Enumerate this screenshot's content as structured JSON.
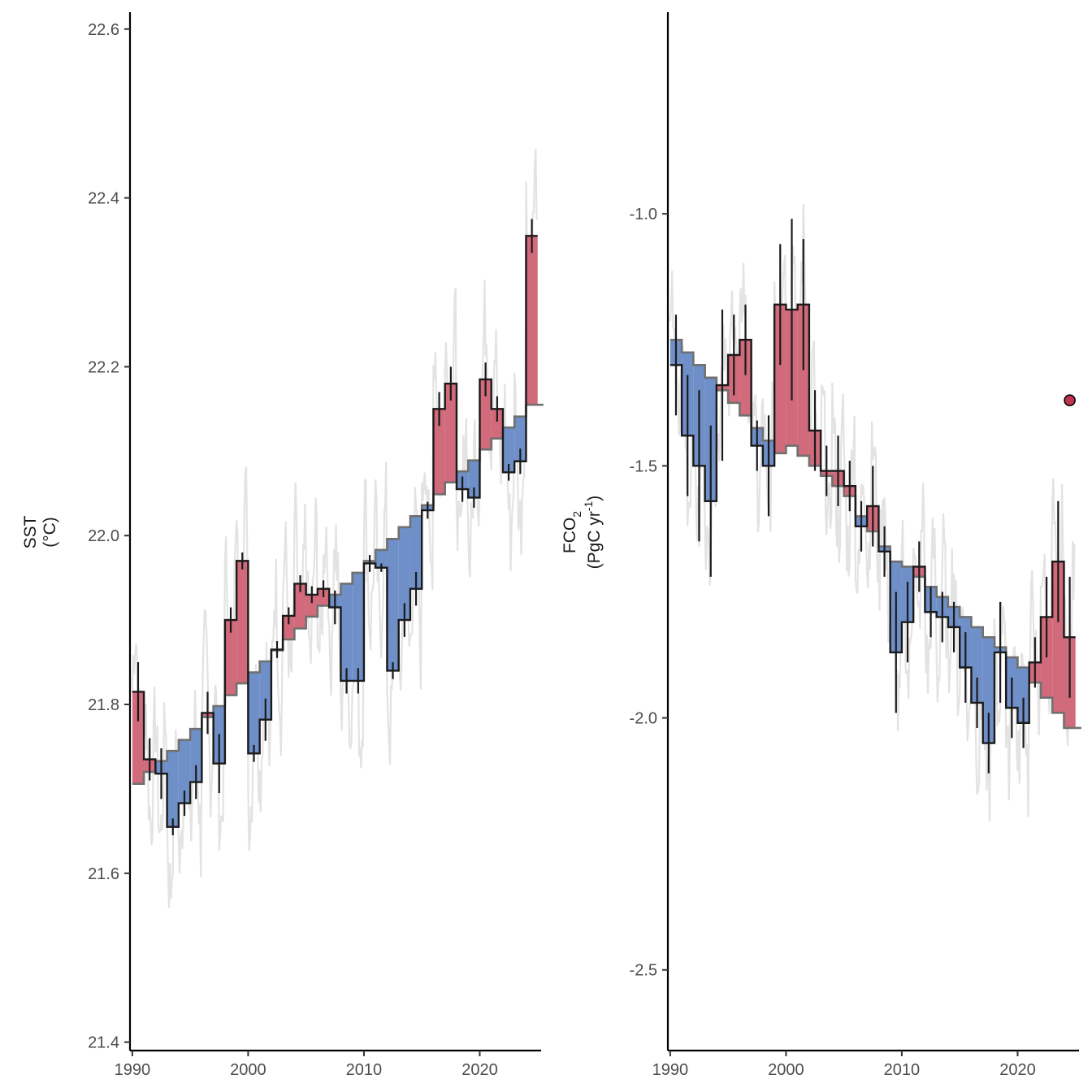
{
  "chart_data": [
    {
      "type": "line",
      "panel": "left",
      "ylabel_lines": [
        "SST",
        "(°C)"
      ],
      "xlabel": "",
      "xlim": [
        1989.8,
        2025.3
      ],
      "ylim": [
        21.39,
        22.62
      ],
      "xticks": [
        1990,
        2000,
        2010,
        2020
      ],
      "yticks": [
        21.4,
        21.6,
        21.8,
        22.0,
        22.2,
        22.4,
        22.6
      ],
      "ytick_labels": [
        "21.4",
        "21.6",
        "21.8",
        "22.0",
        "22.2",
        "22.4",
        "22.6"
      ],
      "xtick_labels": [
        "1990",
        "2000",
        "2010",
        "2020"
      ],
      "grid": false,
      "colors": {
        "above": "#d16a7a",
        "below": "#6f8fc8",
        "monthly": "#e3e3e3",
        "trend": "#707070",
        "annual": "#1a1a1a"
      },
      "series": [
        {
          "years": [
            1990,
            1991,
            1992,
            1993,
            1994,
            1995,
            1996,
            1997,
            1998,
            1999,
            2000,
            2001,
            2002,
            2003,
            2004,
            2005,
            2006,
            2007,
            2008,
            2009,
            2010,
            2011,
            2012,
            2013,
            2014,
            2015,
            2016,
            2017,
            2018,
            2019,
            2020,
            2021,
            2022,
            2023,
            2024
          ],
          "annual": [
            21.815,
            21.735,
            21.718,
            21.655,
            21.683,
            21.708,
            21.79,
            21.73,
            21.9,
            21.97,
            21.742,
            21.782,
            21.865,
            21.905,
            21.943,
            21.93,
            21.937,
            21.915,
            21.828,
            21.828,
            21.967,
            21.962,
            21.84,
            21.9,
            21.937,
            22.03,
            22.15,
            22.18,
            22.055,
            22.045,
            22.185,
            22.15,
            22.075,
            22.088,
            22.355
          ],
          "error": [
            0.035,
            0.025,
            0.03,
            0.01,
            0.015,
            0.02,
            0.025,
            0.035,
            0.015,
            0.01,
            0.01,
            0.025,
            0.01,
            0.01,
            0.01,
            0.01,
            0.01,
            0.02,
            0.015,
            0.015,
            0.01,
            0.005,
            0.01,
            0.02,
            0.02,
            0.01,
            0.02,
            0.02,
            0.015,
            0.012,
            0.02,
            0.015,
            0.01,
            0.015,
            0.02
          ],
          "baseline": [
            21.706,
            21.72,
            21.733,
            21.745,
            21.758,
            21.771,
            21.785,
            21.798,
            21.811,
            21.825,
            21.838,
            21.851,
            21.864,
            21.877,
            21.89,
            21.904,
            21.917,
            21.93,
            21.943,
            21.956,
            21.97,
            21.983,
            21.996,
            22.01,
            22.023,
            22.036,
            22.049,
            22.063,
            22.076,
            22.089,
            22.102,
            22.115,
            22.128,
            22.141,
            22.155
          ]
        }
      ]
    },
    {
      "type": "line",
      "panel": "right",
      "ylabel_lines": [
        "FCO2",
        "(PgC yr-1)"
      ],
      "xlabel": "",
      "xlim": [
        1989.8,
        2025.3
      ],
      "ylim": [
        -2.66,
        -0.6
      ],
      "xticks": [
        1990,
        2000,
        2010,
        2020
      ],
      "yticks": [
        -2.5,
        -2.0,
        -1.5,
        -1.0
      ],
      "ytick_labels": [
        "-2.5",
        "-2.0",
        "-1.5",
        "-1.0"
      ],
      "xtick_labels": [
        "1990",
        "2000",
        "2010",
        "2020"
      ],
      "grid": false,
      "colors": {
        "above": "#d16a7a",
        "below": "#6f8fc8",
        "monthly": "#e3e3e3",
        "trend": "#707070",
        "annual": "#1a1a1a",
        "point": "#c0344f"
      },
      "series": [
        {
          "years": [
            1990,
            1991,
            1992,
            1993,
            1994,
            1995,
            1996,
            1997,
            1998,
            1999,
            2000,
            2001,
            2002,
            2003,
            2004,
            2005,
            2006,
            2007,
            2008,
            2009,
            2010,
            2011,
            2012,
            2013,
            2014,
            2015,
            2016,
            2017,
            2018,
            2019,
            2020,
            2021,
            2022,
            2023,
            2024
          ],
          "annual": [
            -1.3,
            -1.44,
            -1.5,
            -1.57,
            -1.34,
            -1.28,
            -1.25,
            -1.46,
            -1.5,
            -1.18,
            -1.19,
            -1.18,
            -1.43,
            -1.51,
            -1.51,
            -1.54,
            -1.62,
            -1.58,
            -1.67,
            -1.87,
            -1.81,
            -1.7,
            -1.79,
            -1.8,
            -1.82,
            -1.9,
            -1.97,
            -2.05,
            -1.87,
            -1.98,
            -2.01,
            -1.89,
            -1.8,
            -1.69,
            -1.84
          ],
          "error": [
            0.1,
            0.12,
            0.15,
            0.15,
            0.15,
            0.08,
            0.07,
            0.05,
            0.1,
            0.12,
            0.18,
            0.13,
            0.08,
            0.05,
            0.07,
            0.05,
            0.05,
            0.08,
            0.05,
            0.12,
            0.08,
            0.05,
            0.05,
            0.05,
            0.05,
            0.07,
            0.05,
            0.06,
            0.1,
            0.06,
            0.05,
            0.05,
            0.08,
            0.12,
            0.12
          ],
          "baseline": [
            -1.25,
            -1.275,
            -1.3,
            -1.325,
            -1.35,
            -1.375,
            -1.4,
            -1.425,
            -1.45,
            -1.475,
            -1.46,
            -1.48,
            -1.5,
            -1.52,
            -1.54,
            -1.56,
            -1.6,
            -1.63,
            -1.66,
            -1.69,
            -1.7,
            -1.72,
            -1.74,
            -1.76,
            -1.78,
            -1.8,
            -1.82,
            -1.84,
            -1.86,
            -1.88,
            -1.9,
            -1.93,
            -1.96,
            -1.99,
            -2.02
          ],
          "extra_point": {
            "x": 2024.5,
            "y": -1.37
          }
        }
      ]
    }
  ]
}
